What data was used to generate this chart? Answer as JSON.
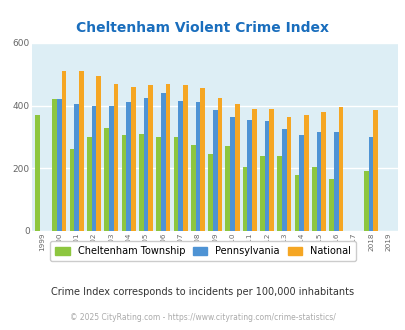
{
  "title": "Cheltenham Violent Crime Index",
  "years": [
    1999,
    2000,
    2001,
    2002,
    2003,
    2004,
    2005,
    2006,
    2007,
    2008,
    2009,
    2010,
    2011,
    2012,
    2013,
    2014,
    2015,
    2016,
    2017,
    2018,
    2019
  ],
  "cheltenham": [
    370,
    420,
    260,
    300,
    330,
    305,
    310,
    300,
    300,
    275,
    245,
    270,
    205,
    240,
    240,
    180,
    205,
    165,
    0,
    190,
    0
  ],
  "pennsylvania": [
    0,
    420,
    405,
    400,
    400,
    410,
    425,
    440,
    415,
    410,
    385,
    365,
    355,
    350,
    325,
    305,
    315,
    315,
    0,
    300,
    0
  ],
  "national": [
    0,
    510,
    510,
    495,
    470,
    460,
    465,
    470,
    465,
    455,
    425,
    405,
    390,
    390,
    365,
    370,
    380,
    395,
    0,
    385,
    0
  ],
  "cheltenham_color": "#8dc63f",
  "pennsylvania_color": "#4e93d4",
  "national_color": "#f5a623",
  "bg_color": "#ddeef5",
  "title_color": "#1a6ebd",
  "ylim": [
    0,
    600
  ],
  "note_text": "Crime Index corresponds to incidents per 100,000 inhabitants",
  "copyright_text": "© 2025 CityRating.com - https://www.cityrating.com/crime-statistics/",
  "legend_labels": [
    "Cheltenham Township",
    "Pennsylvania",
    "National"
  ]
}
